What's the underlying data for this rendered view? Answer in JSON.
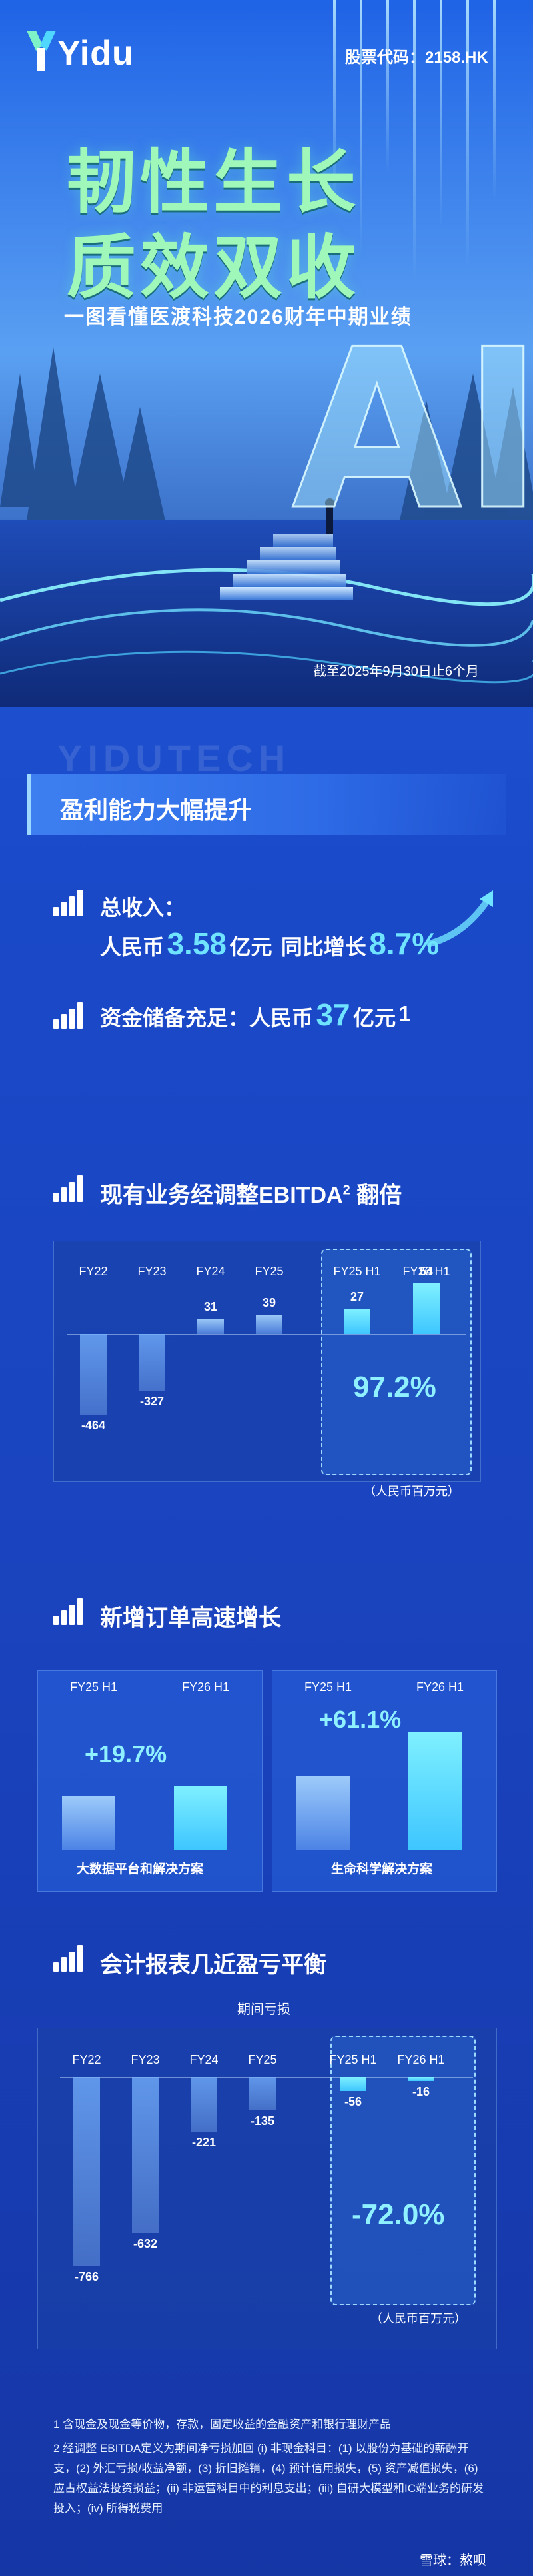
{
  "header": {
    "logo": "Yidu",
    "stock_code": "股票代码：2158.HK",
    "title_line1": "韧性生长",
    "title_line2": "质效双收",
    "subtitle": "一图看懂医渡科技2026财年中期业绩",
    "period": "截至2025年9月30日止6个月",
    "hero_letters": "AI"
  },
  "watermark": "YIDUTECH",
  "banner": {
    "title": "盈利能力大幅提升"
  },
  "revenue": {
    "label": "总收入：",
    "prefix": "人民币",
    "value": "3.58",
    "unit": "亿元",
    "growth_label": "同比增长",
    "growth_value": "8.7%"
  },
  "cash": {
    "label": "资金储备充足：人民币",
    "value": "37",
    "unit": "亿元",
    "note": "1"
  },
  "ebitda": {
    "title": "现有业务经调整EBITDA",
    "note": "2",
    "title_suffix": "翻倍",
    "growth": "97.2%",
    "unit_note": "（人民币百万元）"
  },
  "orders": {
    "title": "新增订单高速增长",
    "left": {
      "period_a": "FY25 H1",
      "period_b": "FY26 H1",
      "growth": "+19.7%",
      "name": "大数据平台和解决方案"
    },
    "right": {
      "period_a": "FY25 H1",
      "period_b": "FY26 H1",
      "growth": "+61.1%",
      "name": "生命科学解决方案"
    }
  },
  "accounting": {
    "title": "会计报表几近盈亏平衡",
    "subtitle": "期间亏损",
    "growth": "-72.0%",
    "unit_note": "（人民币百万元）"
  },
  "chart_data": [
    {
      "type": "bar",
      "title": "现有业务经调整EBITDA",
      "categories": [
        "FY22",
        "FY23",
        "FY24",
        "FY25",
        "FY25 H1",
        "FY26 H1"
      ],
      "values": [
        -464,
        -327,
        31,
        39,
        27,
        54
      ],
      "labels": [
        "-464",
        "-327",
        "31",
        "39",
        "27",
        "54"
      ],
      "highlighted": [
        "FY25 H1",
        "FY26 H1"
      ],
      "ylim": [
        -464,
        54
      ]
    },
    {
      "type": "bar",
      "categories": [
        "FY25 H1",
        "FY26 H1"
      ],
      "values": [
        1.0,
        1.197
      ],
      "series_name": "大数据平台和解决方案"
    },
    {
      "type": "bar",
      "categories": [
        "FY25 H1",
        "FY26 H1"
      ],
      "values": [
        1.0,
        1.611
      ],
      "series_name": "生命科学解决方案"
    },
    {
      "type": "bar",
      "title": "期间亏损",
      "categories": [
        "FY22",
        "FY23",
        "FY24",
        "FY25",
        "FY25 H1",
        "FY26 H1"
      ],
      "values": [
        -766,
        -632,
        -221,
        -135,
        -56,
        -16
      ],
      "labels": [
        "-766",
        "-632",
        "-221",
        "-135",
        "-56",
        "-16"
      ],
      "highlighted": [
        "FY25 H1",
        "FY26 H1"
      ],
      "ylim": [
        -766,
        0
      ]
    }
  ],
  "footnotes": [
    "1  含现金及现金等价物，存款，固定收益的金融资产和银行理财产品",
    "2  经调整 EBITDA定义为期间净亏损加回 (i) 非现金科目：(1) 以股份为基础的薪酬开支，(2) 外汇亏损/收益净额，(3) 折旧摊销，(4) 预计信用损失，(5) 资产减值损失，(6) 应占权益法投资损益；(ii) 非运营科目中的利息支出；(iii) 自研大模型和IC端业务的研发投入；(iv) 所得税费用"
  ],
  "brand_footer": "雪球：熬呗"
}
